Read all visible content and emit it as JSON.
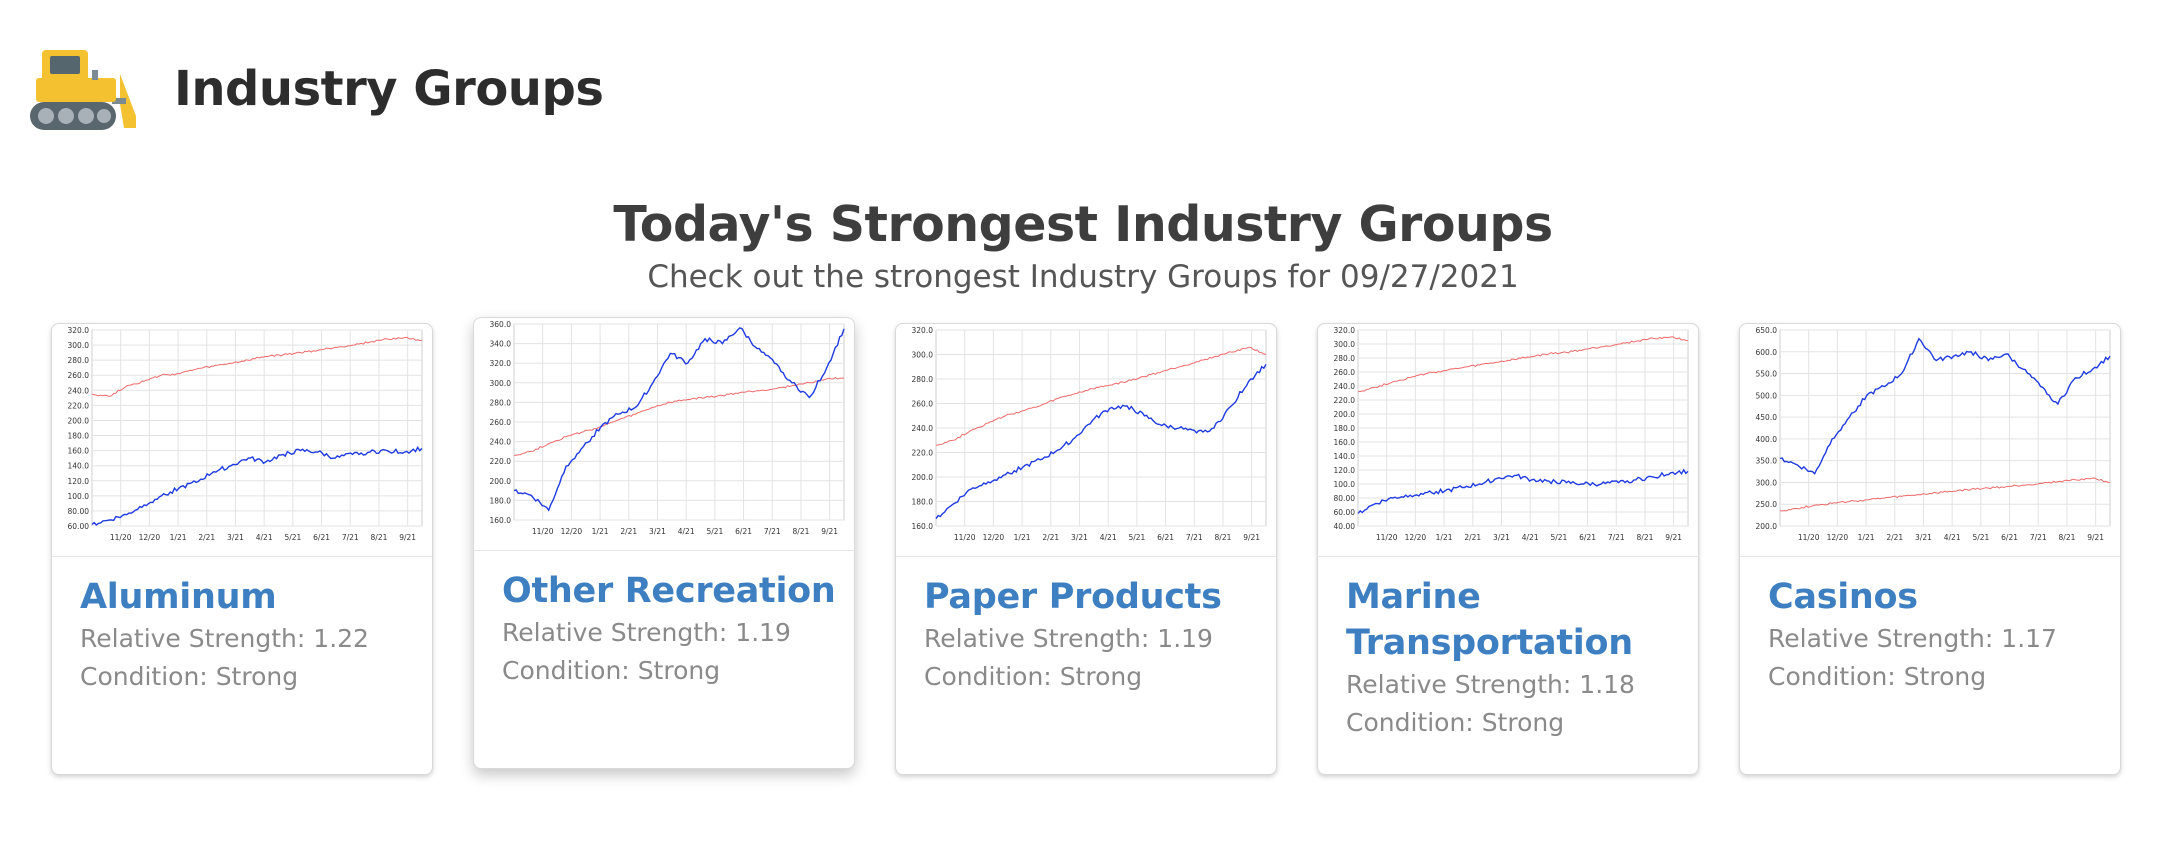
{
  "header": {
    "title": "Industry Groups",
    "logo_icon": "bulldozer-icon"
  },
  "section": {
    "title": "Today's Strongest Industry Groups",
    "subtitle": "Check out the strongest Industry Groups for 09/27/2021"
  },
  "colors": {
    "title_blue": "#3d7fc1",
    "series_blue": "#1f3be0",
    "series_red": "#ee6a6a"
  },
  "cards": [
    {
      "name": "Aluminum",
      "relative_strength_label": "Relative Strength:",
      "relative_strength": "1.22",
      "condition_label": "Condition:",
      "condition": "Strong"
    },
    {
      "name": "Other Recreation",
      "relative_strength_label": "Relative Strength:",
      "relative_strength": "1.19",
      "condition_label": "Condition:",
      "condition": "Strong"
    },
    {
      "name": "Paper Products",
      "relative_strength_label": "Relative Strength:",
      "relative_strength": "1.19",
      "condition_label": "Condition:",
      "condition": "Strong"
    },
    {
      "name": "Marine Transportation",
      "relative_strength_label": "Relative Strength:",
      "relative_strength": "1.18",
      "condition_label": "Condition:",
      "condition": "Strong"
    },
    {
      "name": "Casinos",
      "relative_strength_label": "Relative Strength:",
      "relative_strength": "1.17",
      "condition_label": "Condition:",
      "condition": "Strong"
    }
  ],
  "chart_data": [
    {
      "type": "line",
      "x_ticks": [
        "11/20",
        "12/20",
        "1/21",
        "2/21",
        "3/21",
        "4/21",
        "5/21",
        "6/21",
        "7/21",
        "8/21",
        "9/21"
      ],
      "y_ticks": [
        "60.00",
        "80.00",
        "100.0",
        "120.0",
        "140.0",
        "160.0",
        "180.0",
        "200.0",
        "220.0",
        "240.0",
        "260.0",
        "280.0",
        "300.0",
        "320.0"
      ],
      "ylim": [
        60,
        320
      ],
      "grid": true,
      "series": [
        {
          "color": "#ee6a6a",
          "values": [
            235,
            232,
            246,
            252,
            260,
            262,
            268,
            272,
            276,
            280,
            285,
            287,
            290,
            293,
            297,
            300,
            304,
            308,
            310,
            306
          ]
        },
        {
          "color": "#1f3be0",
          "values": [
            62,
            68,
            75,
            88,
            100,
            110,
            118,
            132,
            140,
            150,
            145,
            155,
            160,
            158,
            150,
            155,
            158,
            160,
            158,
            163
          ]
        }
      ]
    },
    {
      "type": "line",
      "x_ticks": [
        "11/20",
        "12/20",
        "1/21",
        "2/21",
        "3/21",
        "4/21",
        "5/21",
        "6/21",
        "7/21",
        "8/21",
        "9/21"
      ],
      "y_ticks": [
        "160.0",
        "180.0",
        "200.0",
        "220.0",
        "240.0",
        "260.0",
        "280.0",
        "300.0",
        "320.0",
        "340.0",
        "360.0"
      ],
      "ylim": [
        160,
        360
      ],
      "grid": true,
      "series": [
        {
          "color": "#ee6a6a",
          "values": [
            226,
            230,
            238,
            245,
            250,
            255,
            262,
            268,
            275,
            280,
            283,
            285,
            287,
            290,
            292,
            294,
            297,
            300,
            304,
            305
          ]
        },
        {
          "color": "#1f3be0",
          "values": [
            190,
            185,
            170,
            215,
            235,
            255,
            268,
            275,
            300,
            330,
            320,
            345,
            340,
            356,
            335,
            320,
            300,
            285,
            315,
            355
          ]
        }
      ]
    },
    {
      "type": "line",
      "x_ticks": [
        "11/20",
        "12/20",
        "1/21",
        "2/21",
        "3/21",
        "4/21",
        "5/21",
        "6/21",
        "7/21",
        "8/21",
        "9/21"
      ],
      "y_ticks": [
        "160.0",
        "180.0",
        "200.0",
        "220.0",
        "240.0",
        "260.0",
        "280.0",
        "300.0",
        "320.0"
      ],
      "ylim": [
        160,
        320
      ],
      "grid": true,
      "series": [
        {
          "color": "#ee6a6a",
          "values": [
            226,
            230,
            238,
            244,
            250,
            254,
            258,
            264,
            268,
            272,
            275,
            278,
            282,
            286,
            290,
            294,
            298,
            302,
            306,
            300
          ]
        },
        {
          "color": "#1f3be0",
          "values": [
            166,
            178,
            190,
            196,
            202,
            208,
            214,
            222,
            232,
            246,
            256,
            258,
            250,
            242,
            240,
            236,
            240,
            258,
            278,
            292
          ]
        }
      ]
    },
    {
      "type": "line",
      "x_ticks": [
        "11/20",
        "12/20",
        "1/21",
        "2/21",
        "3/21",
        "4/21",
        "5/21",
        "6/21",
        "7/21",
        "8/21",
        "9/21"
      ],
      "y_ticks": [
        "40.00",
        "60.00",
        "80.00",
        "100.0",
        "120.0",
        "140.0",
        "160.0",
        "180.0",
        "200.0",
        "220.0",
        "240.0",
        "260.0",
        "280.0",
        "300.0",
        "320.0"
      ],
      "ylim": [
        40,
        320
      ],
      "grid": true,
      "series": [
        {
          "color": "#ee6a6a",
          "values": [
            232,
            238,
            246,
            252,
            258,
            262,
            266,
            270,
            274,
            278,
            282,
            286,
            288,
            292,
            296,
            300,
            304,
            308,
            310,
            305
          ]
        },
        {
          "color": "#1f3be0",
          "values": [
            58,
            72,
            80,
            84,
            88,
            90,
            95,
            100,
            108,
            112,
            106,
            104,
            102,
            100,
            100,
            102,
            106,
            110,
            116,
            118
          ]
        }
      ]
    },
    {
      "type": "line",
      "x_ticks": [
        "11/20",
        "12/20",
        "1/21",
        "2/21",
        "3/21",
        "4/21",
        "5/21",
        "6/21",
        "7/21",
        "8/21",
        "9/21"
      ],
      "y_ticks": [
        "200.0",
        "250.0",
        "300.0",
        "350.0",
        "400.0",
        "450.0",
        "500.0",
        "550.0",
        "600.0",
        "650.0"
      ],
      "ylim": [
        200,
        650
      ],
      "grid": true,
      "series": [
        {
          "color": "#ee6a6a",
          "values": [
            235,
            240,
            248,
            252,
            256,
            260,
            264,
            268,
            272,
            276,
            280,
            284,
            287,
            290,
            294,
            298,
            302,
            306,
            310,
            300
          ]
        },
        {
          "color": "#1f3be0",
          "values": [
            355,
            340,
            320,
            400,
            450,
            500,
            520,
            550,
            630,
            580,
            590,
            600,
            580,
            595,
            560,
            520,
            480,
            540,
            560,
            590
          ]
        }
      ]
    }
  ]
}
